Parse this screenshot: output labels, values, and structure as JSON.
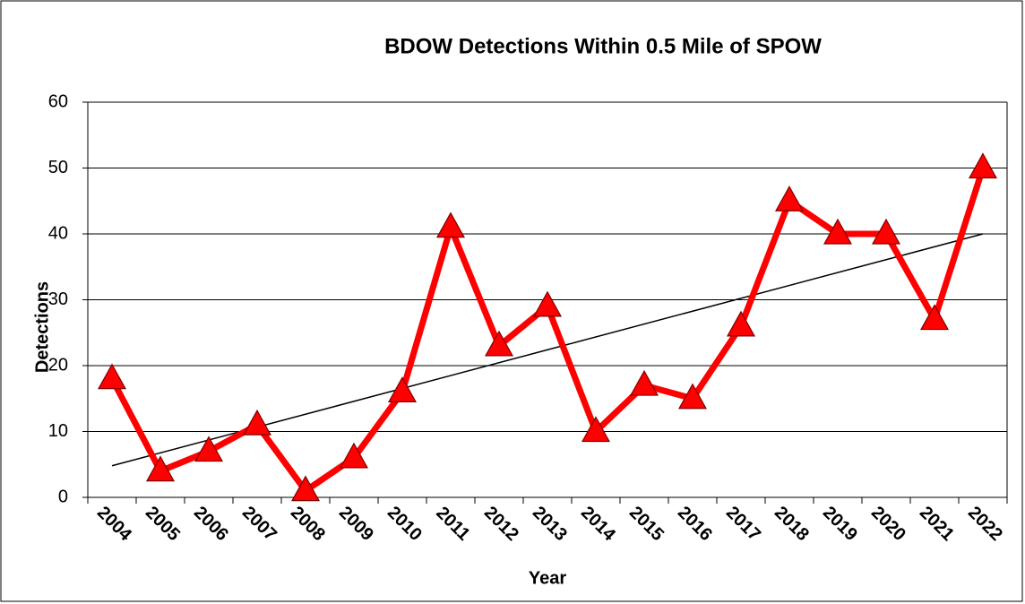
{
  "chart_data": {
    "type": "line",
    "title": "BDOW Detections Within 0.5 Mile of SPOW",
    "x_label": "Year",
    "y_label": "Detections",
    "categories": [
      "2004",
      "2005",
      "2006",
      "2007",
      "2008",
      "2009",
      "2010",
      "2011",
      "2012",
      "2013",
      "2014",
      "2015",
      "2016",
      "2017",
      "2018",
      "2019",
      "2020",
      "2021",
      "2022"
    ],
    "series": [
      {
        "color": "#ff0000",
        "values": [
          18,
          4,
          7,
          11,
          1,
          6,
          16,
          41,
          23,
          29,
          10,
          17,
          15,
          26,
          45,
          40,
          40,
          27,
          50
        ]
      }
    ],
    "trendline": [
      4.8,
      40
    ],
    "ylim": [
      0,
      60
    ],
    "yticks": [
      0,
      10,
      20,
      30,
      40,
      50,
      60
    ],
    "grid": true
  }
}
